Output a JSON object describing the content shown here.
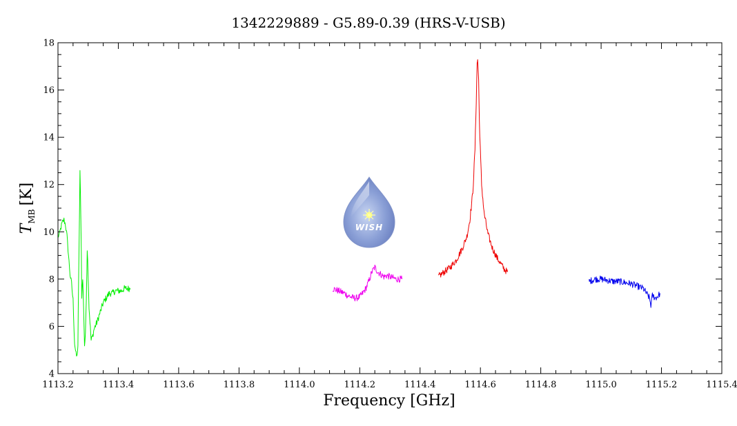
{
  "chart_data": {
    "type": "line",
    "title": "1342229889 - G5.89-0.39 (HRS-V-USB)",
    "xlabel": "Frequency [GHz]",
    "ylabel_main": "T",
    "ylabel_sub": "MB",
    "ylabel_unit": "[K]",
    "xlim": [
      1113.2,
      1115.4
    ],
    "ylim": [
      4,
      18
    ],
    "x_ticks": [
      "1113.2",
      "1113.4",
      "1113.6",
      "1113.8",
      "1114.0",
      "1114.2",
      "1114.4",
      "1114.6",
      "1114.8",
      "1115.0",
      "1115.2",
      "1115.4"
    ],
    "y_ticks": [
      "4",
      "6",
      "8",
      "10",
      "12",
      "14",
      "16",
      "18"
    ],
    "grid": false,
    "logo_text": "WISH",
    "series": [
      {
        "color": "#00ee00",
        "points": [
          [
            1113.2,
            9.8
          ],
          [
            1113.205,
            9.9
          ],
          [
            1113.21,
            10.2
          ],
          [
            1113.215,
            10.4
          ],
          [
            1113.22,
            10.5
          ],
          [
            1113.225,
            10.3
          ],
          [
            1113.23,
            9.8
          ],
          [
            1113.235,
            9.0
          ],
          [
            1113.24,
            8.2
          ],
          [
            1113.245,
            7.8
          ],
          [
            1113.25,
            7.1
          ],
          [
            1113.255,
            5.3
          ],
          [
            1113.26,
            4.8
          ],
          [
            1113.263,
            4.7
          ],
          [
            1113.266,
            5.2
          ],
          [
            1113.27,
            9.5
          ],
          [
            1113.273,
            12.5
          ],
          [
            1113.276,
            10.6
          ],
          [
            1113.279,
            7.3
          ],
          [
            1113.282,
            8.0
          ],
          [
            1113.285,
            6.8
          ],
          [
            1113.288,
            5.2
          ],
          [
            1113.291,
            5.6
          ],
          [
            1113.294,
            7.3
          ],
          [
            1113.297,
            9.3
          ],
          [
            1113.3,
            8.2
          ],
          [
            1113.303,
            6.8
          ],
          [
            1113.306,
            6.2
          ],
          [
            1113.31,
            5.4
          ],
          [
            1113.315,
            5.6
          ],
          [
            1113.32,
            5.9
          ],
          [
            1113.33,
            6.2
          ],
          [
            1113.34,
            6.6
          ],
          [
            1113.35,
            7.0
          ],
          [
            1113.36,
            7.2
          ],
          [
            1113.37,
            7.4
          ],
          [
            1113.38,
            7.4
          ],
          [
            1113.39,
            7.5
          ],
          [
            1113.4,
            7.5
          ],
          [
            1113.41,
            7.5
          ],
          [
            1113.42,
            7.6
          ],
          [
            1113.43,
            7.6
          ],
          [
            1113.44,
            7.6
          ]
        ]
      },
      {
        "color": "#ee00ee",
        "points": [
          [
            1114.11,
            7.6
          ],
          [
            1114.12,
            7.55
          ],
          [
            1114.13,
            7.5
          ],
          [
            1114.14,
            7.45
          ],
          [
            1114.15,
            7.4
          ],
          [
            1114.16,
            7.3
          ],
          [
            1114.17,
            7.25
          ],
          [
            1114.18,
            7.2
          ],
          [
            1114.19,
            7.2
          ],
          [
            1114.2,
            7.25
          ],
          [
            1114.21,
            7.4
          ],
          [
            1114.22,
            7.6
          ],
          [
            1114.23,
            7.9
          ],
          [
            1114.24,
            8.3
          ],
          [
            1114.25,
            8.5
          ],
          [
            1114.26,
            8.3
          ],
          [
            1114.27,
            8.2
          ],
          [
            1114.28,
            8.1
          ],
          [
            1114.29,
            8.15
          ],
          [
            1114.3,
            8.1
          ],
          [
            1114.31,
            8.05
          ],
          [
            1114.32,
            8.0
          ],
          [
            1114.33,
            8.0
          ],
          [
            1114.34,
            8.0
          ]
        ]
      },
      {
        "color": "#ee0000",
        "points": [
          [
            1114.46,
            8.1
          ],
          [
            1114.48,
            8.3
          ],
          [
            1114.5,
            8.5
          ],
          [
            1114.52,
            8.8
          ],
          [
            1114.54,
            9.3
          ],
          [
            1114.555,
            9.8
          ],
          [
            1114.565,
            10.5
          ],
          [
            1114.575,
            11.7
          ],
          [
            1114.582,
            13.5
          ],
          [
            1114.586,
            15.5
          ],
          [
            1114.589,
            17.1
          ],
          [
            1114.591,
            17.3
          ],
          [
            1114.594,
            16.4
          ],
          [
            1114.598,
            14.0
          ],
          [
            1114.604,
            12.0
          ],
          [
            1114.612,
            10.8
          ],
          [
            1114.625,
            9.9
          ],
          [
            1114.64,
            9.3
          ],
          [
            1114.655,
            8.9
          ],
          [
            1114.67,
            8.6
          ],
          [
            1114.68,
            8.4
          ],
          [
            1114.69,
            8.3
          ]
        ]
      },
      {
        "color": "#0000ee",
        "points": [
          [
            1114.96,
            7.9
          ],
          [
            1114.98,
            8.0
          ],
          [
            1115.0,
            8.0
          ],
          [
            1115.02,
            7.95
          ],
          [
            1115.04,
            7.9
          ],
          [
            1115.06,
            7.9
          ],
          [
            1115.08,
            7.85
          ],
          [
            1115.1,
            7.8
          ],
          [
            1115.12,
            7.7
          ],
          [
            1115.14,
            7.6
          ],
          [
            1115.15,
            7.4
          ],
          [
            1115.16,
            7.2
          ],
          [
            1115.165,
            6.9
          ],
          [
            1115.17,
            7.3
          ],
          [
            1115.18,
            7.2
          ],
          [
            1115.19,
            7.3
          ],
          [
            1115.195,
            7.4
          ]
        ]
      }
    ]
  }
}
